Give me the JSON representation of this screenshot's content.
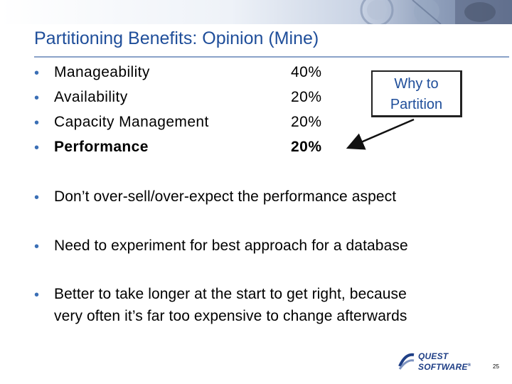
{
  "slide": {
    "title": "Partitioning Benefits: Opinion (Mine)",
    "bullets": [
      {
        "label": "Manageability",
        "percent": "40%"
      },
      {
        "label": "Availability",
        "percent": "20%"
      },
      {
        "label": "Capacity Management",
        "percent": "20%"
      },
      {
        "label": "Performance",
        "percent": "20%"
      }
    ],
    "callout": {
      "line1": "Why to",
      "line2": "Partition"
    },
    "points": [
      {
        "text": "Don’t over-sell/over-expect the performance aspect"
      },
      {
        "text": "Need to experiment for best approach for a database"
      },
      {
        "line1": "Better to take longer at the start to get right, because",
        "line2": "very often it’s far too expensive to change afterwards"
      }
    ],
    "bullet_glyph": "•",
    "page_number": "25"
  },
  "logo": {
    "line1": "QUEST",
    "line2": "SOFTWARE",
    "mark": "®"
  },
  "colors": {
    "title": "#1f4e9a",
    "bullet": "#3b6fb5",
    "rule": "#8aa2c8",
    "logo": "#1f3f86"
  }
}
